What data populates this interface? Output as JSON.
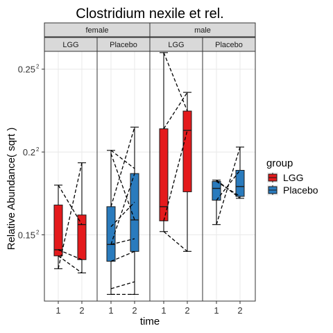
{
  "chart_data": {
    "type": "boxplot",
    "title": "Clostridium nexile et rel.",
    "xlabel": "time",
    "ylabel": "Relative Abundance( sqrt )",
    "y_scale": "sqrt",
    "ylim": [
      0.0121,
      0.068
    ],
    "y_ticks": [
      {
        "label": "0.15",
        "sup": "2",
        "value": 0.0225
      },
      {
        "label": "0.2",
        "sup": "2",
        "value": 0.04
      },
      {
        "label": "0.25",
        "sup": "2",
        "value": 0.0625
      }
    ],
    "facet_rows": [
      "female",
      "male"
    ],
    "facet_cols": [
      "LGG",
      "Placebo"
    ],
    "x_categories": [
      "1",
      "2"
    ],
    "grid": true,
    "legend": {
      "title": "group",
      "position": "right",
      "items": [
        {
          "name": "LGG",
          "color": "#e41a1c"
        },
        {
          "name": "Placebo",
          "color": "#2a7bbd"
        }
      ]
    },
    "panels": [
      {
        "sex": "female",
        "group": "LGG",
        "color": "#e41a1c",
        "boxes": [
          {
            "x": "1",
            "whisker_low": 0.01678,
            "q1": 0.01885,
            "median": 0.01988,
            "q3": 0.02822,
            "whisker_high": 0.0324
          },
          {
            "x": "2",
            "whisker_low": 0.01613,
            "q1": 0.01823,
            "median": 0.0244,
            "q3": 0.02624,
            "whisker_high": 0.03744
          }
        ],
        "pairs": [
          [
            0.0324,
            0.0244
          ],
          [
            0.01988,
            0.01823
          ],
          [
            0.01678,
            0.03744
          ],
          [
            0.01885,
            0.01613
          ]
        ]
      },
      {
        "sex": "female",
        "group": "Placebo",
        "color": "#2a7bbd",
        "boxes": [
          {
            "x": "1",
            "whisker_low": 0.013,
            "q1": 0.01796,
            "median": 0.02079,
            "q3": 0.02789,
            "whisker_high": 0.0404
          },
          {
            "x": "2",
            "whisker_low": 0.013,
            "q1": 0.0196,
            "median": 0.02528,
            "q3": 0.03497,
            "whisker_high": 0.04623
          }
        ],
        "pairs": [
          [
            0.0404,
            0.0361
          ],
          [
            0.0396,
            0.02528
          ],
          [
            0.02789,
            0.04623
          ],
          [
            0.024,
            0.0288
          ],
          [
            0.02079,
            0.03497
          ],
          [
            0.02079,
            0.0218
          ],
          [
            0.01796,
            0.0196
          ],
          [
            0.0138,
            0.0148
          ],
          [
            0.013,
            0.013
          ]
        ]
      },
      {
        "sex": "male",
        "group": "LGG",
        "color": "#e41a1c",
        "boxes": [
          {
            "x": "1",
            "whisker_low": 0.0231,
            "q1": 0.0251,
            "median": 0.02789,
            "q3": 0.0458,
            "whisker_high": 0.0676
          },
          {
            "x": "2",
            "whisker_low": 0.0196,
            "q1": 0.03097,
            "median": 0.0454,
            "q3": 0.0505,
            "whisker_high": 0.0557
          }
        ],
        "pairs": [
          [
            0.0676,
            0.0505
          ],
          [
            0.0458,
            0.0557
          ],
          [
            0.0251,
            0.0454
          ],
          [
            0.0231,
            0.0196
          ]
        ]
      },
      {
        "sex": "male",
        "group": "Placebo",
        "color": "#2a7bbd",
        "boxes": [
          {
            "x": "1",
            "whisker_low": 0.0244,
            "q1": 0.0292,
            "median": 0.0317,
            "q3": 0.0332,
            "whisker_high": 0.0335
          },
          {
            "x": "2",
            "whisker_low": 0.0296,
            "q1": 0.03,
            "median": 0.0321,
            "q3": 0.0357,
            "whisker_high": 0.0412
          }
        ],
        "pairs": [
          [
            0.0335,
            0.0296
          ],
          [
            0.0332,
            0.03
          ],
          [
            0.0292,
            0.0357
          ],
          [
            0.0244,
            0.0412
          ]
        ]
      }
    ]
  }
}
